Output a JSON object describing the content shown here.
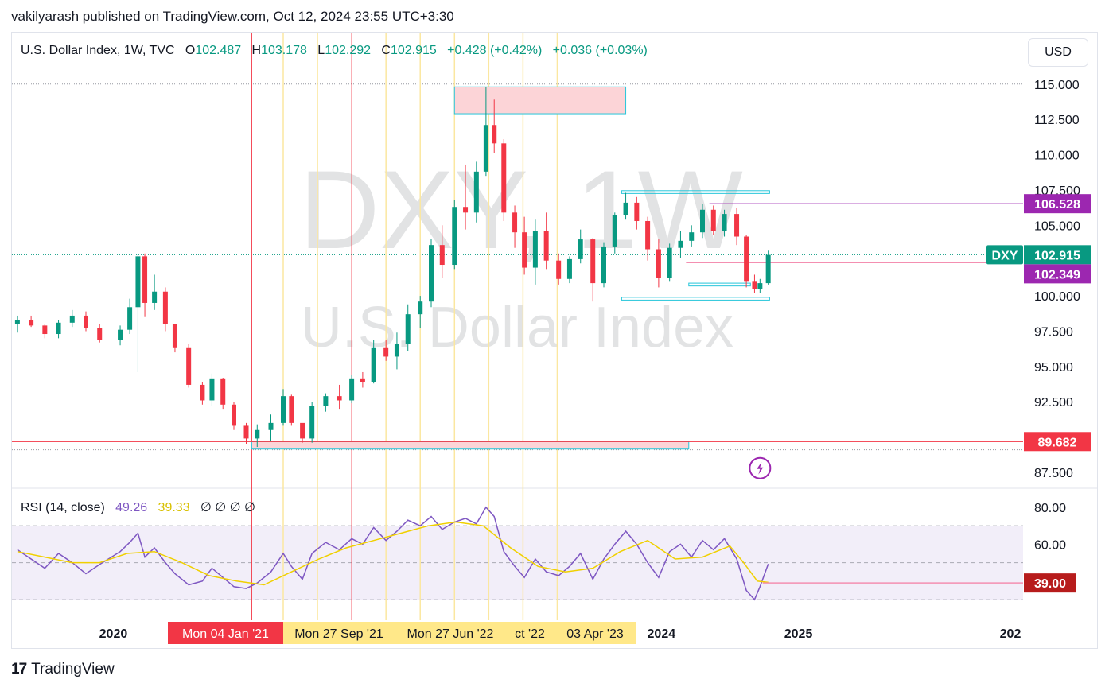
{
  "byline": "vakilyarash published on TradingView.com, Oct 12, 2024 23:55 UTC+3:30",
  "legend": {
    "symbol": "U.S. Dollar Index, 1W, TVC",
    "o_label": "O",
    "o": "102.487",
    "h_label": "H",
    "h": "103.178",
    "l_label": "L",
    "l": "102.292",
    "c_label": "C",
    "c": "102.915",
    "change": "+0.428 (+0.42%)",
    "change2": "+0.036 (+0.03%)"
  },
  "currency_button": "USD",
  "watermark": {
    "line1": "DXY, 1W",
    "line2": "U.S. Dollar Index"
  },
  "rsi_legend": {
    "name": "RSI (14, close)",
    "value": "49.26",
    "ma": "39.33",
    "extra": "∅ ∅ ∅ ∅"
  },
  "footer": {
    "logo": "17",
    "brand": "TradingView"
  },
  "colors": {
    "up": "#089981",
    "down": "#f23645",
    "rsi": "#7e57c2",
    "rsi_ma": "#f0d000",
    "accent_purple": "#9c27b0",
    "vline_yellow": "#fbe7a0",
    "vline_red": "#f23645"
  },
  "chart_data": [
    {
      "type": "candlestick",
      "title": "U.S. Dollar Index, 1W, TVC",
      "x_tick_labels": [
        "2020",
        "2024",
        "2025",
        "202"
      ],
      "y_tick_labels": [
        "115.000",
        "112.500",
        "110.000",
        "107.500",
        "105.000",
        "100.000",
        "97.500",
        "95.000",
        "92.500",
        "87.500"
      ],
      "ylim": [
        86.6,
        116
      ],
      "xlim": [
        2019.26,
        2026.64
      ],
      "grid": false,
      "price_labels": [
        {
          "text": "106.528",
          "value": 106.528,
          "color": "#9c27b0"
        },
        {
          "text": "DXY",
          "value": 102.915,
          "color": "#089981"
        },
        {
          "text": "102.915",
          "value": 102.915,
          "color": "#089981"
        },
        {
          "text": "102.349",
          "value": 102.349,
          "color": "#9c27b0"
        },
        {
          "text": "89.682",
          "value": 89.682,
          "color": "#f23645"
        }
      ],
      "time_labels": [
        {
          "text": "Mon 04 Jan '21",
          "date": 2021.01,
          "color": "#f23645"
        },
        {
          "text": "Mon 27 Sep '21",
          "date": 2021.74,
          "color": "#ffe889"
        },
        {
          "text": "Mon 27 Jun '22",
          "date": 2022.49,
          "color": "#ffe889"
        },
        {
          "text": "ct '22",
          "date": 2022.77,
          "color": "#ffe889"
        },
        {
          "text": "03 Apr '23",
          "date": 2023.25,
          "color": "#ffe889"
        }
      ],
      "vertical_lines_red": [
        2021.01,
        2021.74
      ],
      "vertical_lines_yellow": [
        2021.24,
        2021.49,
        2021.99,
        2022.24,
        2022.49,
        2022.74,
        2022.99,
        2023.24
      ],
      "horizontal_levels": [
        {
          "value": 106.528,
          "from": 2024.35,
          "color": "#9c27b0"
        },
        {
          "value": 102.349,
          "from": 2024.18,
          "color": "#f48fb1"
        },
        {
          "value": 89.682,
          "from": 2019.26,
          "color": "#f23645"
        }
      ],
      "zones": [
        {
          "from": 2022.49,
          "to": 2023.74,
          "low": 112.9,
          "high": 114.8,
          "fill": "#fcd4d7",
          "border": "#26c6da"
        },
        {
          "from": 2021.01,
          "to": 2024.2,
          "low": 89.15,
          "high": 89.682,
          "fill": "#fcd4d7",
          "border": "#26c6da"
        },
        {
          "from": 2023.71,
          "to": 2024.79,
          "low": 107.25,
          "high": 107.45,
          "fill": "none",
          "border": "#26c6da"
        },
        {
          "from": 2023.71,
          "to": 2024.79,
          "low": 99.7,
          "high": 99.9,
          "fill": "none",
          "border": "#26c6da"
        },
        {
          "from": 2024.2,
          "to": 2024.65,
          "low": 100.7,
          "high": 100.9,
          "fill": "none",
          "border": "#26c6da"
        }
      ],
      "series": [
        {
          "name": "DXY",
          "candles": [
            [
              2019.3,
              98.0,
              98.6,
              97.4,
              98.3
            ],
            [
              2019.4,
              98.3,
              98.6,
              97.8,
              97.9
            ],
            [
              2019.5,
              97.9,
              98.0,
              97.0,
              97.3
            ],
            [
              2019.6,
              97.3,
              98.3,
              97.0,
              98.1
            ],
            [
              2019.7,
              98.1,
              99.0,
              97.8,
              98.6
            ],
            [
              2019.8,
              98.6,
              98.9,
              97.5,
              97.7
            ],
            [
              2019.9,
              97.7,
              98.0,
              96.7,
              96.9
            ],
            [
              2020.05,
              96.9,
              97.9,
              96.5,
              97.6
            ],
            [
              2020.12,
              97.6,
              99.8,
              97.3,
              99.2
            ],
            [
              2020.18,
              99.2,
              103.0,
              94.6,
              102.8
            ],
            [
              2020.23,
              102.8,
              103.0,
              98.5,
              99.5
            ],
            [
              2020.3,
              99.5,
              101.5,
              99.0,
              100.3
            ],
            [
              2020.38,
              100.3,
              100.6,
              97.5,
              98.0
            ],
            [
              2020.45,
              98.0,
              97.8,
              96.0,
              96.3
            ],
            [
              2020.55,
              96.3,
              96.6,
              93.5,
              93.7
            ],
            [
              2020.65,
              93.7,
              93.9,
              92.3,
              92.6
            ],
            [
              2020.72,
              92.6,
              94.5,
              92.2,
              94.1
            ],
            [
              2020.8,
              94.1,
              94.2,
              92.0,
              92.3
            ],
            [
              2020.88,
              92.3,
              92.5,
              90.5,
              90.8
            ],
            [
              2020.97,
              90.8,
              91.0,
              89.5,
              89.9
            ],
            [
              2021.05,
              89.9,
              90.9,
              89.3,
              90.5
            ],
            [
              2021.15,
              90.5,
              91.6,
              89.7,
              91.0
            ],
            [
              2021.24,
              91.0,
              93.4,
              90.8,
              92.9
            ],
            [
              2021.3,
              92.9,
              93.0,
              90.8,
              91.0
            ],
            [
              2021.38,
              91.0,
              90.9,
              89.6,
              89.9
            ],
            [
              2021.45,
              89.9,
              92.5,
              89.6,
              92.2
            ],
            [
              2021.55,
              92.2,
              93.1,
              91.8,
              92.9
            ],
            [
              2021.65,
              92.9,
              93.7,
              92.0,
              92.6
            ],
            [
              2021.74,
              92.6,
              94.4,
              92.4,
              94.1
            ],
            [
              2021.82,
              94.1,
              94.6,
              93.5,
              93.9
            ],
            [
              2021.9,
              93.9,
              96.9,
              93.8,
              96.3
            ],
            [
              2021.99,
              96.3,
              96.9,
              95.4,
              95.7
            ],
            [
              2022.07,
              95.7,
              97.4,
              94.8,
              96.6
            ],
            [
              2022.15,
              96.6,
              99.4,
              96.1,
              98.7
            ],
            [
              2022.24,
              98.7,
              100.0,
              97.7,
              99.6
            ],
            [
              2022.32,
              99.6,
              104.0,
              99.2,
              103.6
            ],
            [
              2022.4,
              103.6,
              105.0,
              101.3,
              102.2
            ],
            [
              2022.49,
              102.2,
              106.8,
              101.9,
              106.3
            ],
            [
              2022.57,
              106.3,
              109.3,
              104.7,
              105.9
            ],
            [
              2022.65,
              105.9,
              109.5,
              105.2,
              108.8
            ],
            [
              2022.72,
              108.8,
              114.8,
              108.5,
              112.1
            ],
            [
              2022.78,
              112.1,
              113.9,
              110.1,
              110.8
            ],
            [
              2022.85,
              110.8,
              111.1,
              105.3,
              105.9
            ],
            [
              2022.93,
              105.9,
              106.4,
              103.4,
              104.5
            ],
            [
              2023.0,
              104.5,
              105.6,
              101.5,
              102.0
            ],
            [
              2023.08,
              102.0,
              105.4,
              100.8,
              104.6
            ],
            [
              2023.16,
              104.6,
              105.9,
              101.9,
              102.5
            ],
            [
              2023.25,
              102.5,
              103.0,
              100.8,
              101.2
            ],
            [
              2023.33,
              101.2,
              102.8,
              100.9,
              102.6
            ],
            [
              2023.41,
              102.6,
              104.7,
              102.3,
              104.0
            ],
            [
              2023.5,
              104.0,
              104.1,
              99.6,
              100.9
            ],
            [
              2023.58,
              100.9,
              103.8,
              100.6,
              103.5
            ],
            [
              2023.66,
              103.5,
              105.9,
              103.0,
              105.7
            ],
            [
              2023.74,
              105.7,
              107.3,
              105.4,
              106.6
            ],
            [
              2023.82,
              106.6,
              107.0,
              104.7,
              105.3
            ],
            [
              2023.9,
              105.3,
              105.6,
              102.5,
              103.3
            ],
            [
              2023.98,
              103.3,
              104.0,
              100.6,
              101.3
            ],
            [
              2024.06,
              101.3,
              103.7,
              101.0,
              103.4
            ],
            [
              2024.14,
              103.4,
              104.6,
              102.7,
              103.9
            ],
            [
              2024.22,
              103.9,
              105.0,
              103.5,
              104.5
            ],
            [
              2024.3,
              104.5,
              106.5,
              104.1,
              106.1
            ],
            [
              2024.38,
              106.1,
              106.4,
              104.3,
              104.6
            ],
            [
              2024.46,
              104.6,
              106.1,
              104.2,
              105.8
            ],
            [
              2024.55,
              105.8,
              106.2,
              103.6,
              104.2
            ],
            [
              2024.62,
              104.2,
              104.3,
              100.6,
              101.0
            ],
            [
              2024.68,
              101.0,
              101.5,
              100.2,
              100.5
            ],
            [
              2024.72,
              100.5,
              101.2,
              100.2,
              100.9
            ],
            [
              2024.78,
              100.9,
              103.2,
              100.8,
              102.9
            ]
          ]
        }
      ]
    },
    {
      "type": "line",
      "title": "RSI (14, close)",
      "y_tick_labels": [
        "80.00",
        "60.00"
      ],
      "ylim": [
        24,
        86
      ],
      "band": [
        30,
        70
      ],
      "level_label": {
        "text": "39.00",
        "value": 39.0
      },
      "series": [
        {
          "name": "RSI",
          "color": "#7e57c2",
          "x": [
            2019.3,
            2019.4,
            2019.5,
            2019.6,
            2019.7,
            2019.8,
            2019.9,
            2020.05,
            2020.12,
            2020.18,
            2020.23,
            2020.3,
            2020.38,
            2020.45,
            2020.55,
            2020.65,
            2020.72,
            2020.8,
            2020.88,
            2020.97,
            2021.05,
            2021.15,
            2021.24,
            2021.3,
            2021.38,
            2021.45,
            2021.55,
            2021.65,
            2021.74,
            2021.82,
            2021.9,
            2021.99,
            2022.07,
            2022.15,
            2022.24,
            2022.32,
            2022.4,
            2022.49,
            2022.57,
            2022.65,
            2022.72,
            2022.78,
            2022.85,
            2022.93,
            2023.0,
            2023.08,
            2023.16,
            2023.25,
            2023.33,
            2023.41,
            2023.5,
            2023.58,
            2023.66,
            2023.74,
            2023.82,
            2023.9,
            2023.98,
            2024.06,
            2024.14,
            2024.22,
            2024.3,
            2024.38,
            2024.46,
            2024.55,
            2024.62,
            2024.68,
            2024.72,
            2024.78
          ],
          "values": [
            57,
            52,
            47,
            55,
            50,
            44,
            49,
            56,
            61,
            66,
            53,
            58,
            50,
            44,
            38,
            40,
            47,
            42,
            37,
            36,
            39,
            45,
            55,
            48,
            41,
            55,
            61,
            57,
            63,
            60,
            69,
            62,
            67,
            73,
            70,
            75,
            68,
            72,
            74,
            71,
            80,
            75,
            56,
            48,
            42,
            52,
            45,
            43,
            48,
            55,
            41,
            52,
            60,
            67,
            60,
            50,
            42,
            56,
            60,
            53,
            62,
            57,
            63,
            52,
            35,
            30,
            37,
            49.26
          ]
        },
        {
          "name": "MA",
          "color": "#f0d000",
          "x": [
            2019.3,
            2019.5,
            2019.7,
            2019.9,
            2020.1,
            2020.3,
            2020.5,
            2020.7,
            2020.9,
            2021.1,
            2021.3,
            2021.5,
            2021.7,
            2021.9,
            2022.1,
            2022.3,
            2022.5,
            2022.7,
            2022.9,
            2023.1,
            2023.3,
            2023.5,
            2023.7,
            2023.9,
            2024.1,
            2024.3,
            2024.5,
            2024.6,
            2024.7,
            2024.78
          ],
          "values": [
            56,
            53,
            50,
            50,
            55,
            56,
            50,
            43,
            40,
            38,
            45,
            52,
            58,
            62,
            66,
            70,
            72,
            70,
            58,
            48,
            45,
            47,
            56,
            62,
            52,
            53,
            59,
            50,
            40,
            39.33
          ]
        }
      ]
    }
  ]
}
